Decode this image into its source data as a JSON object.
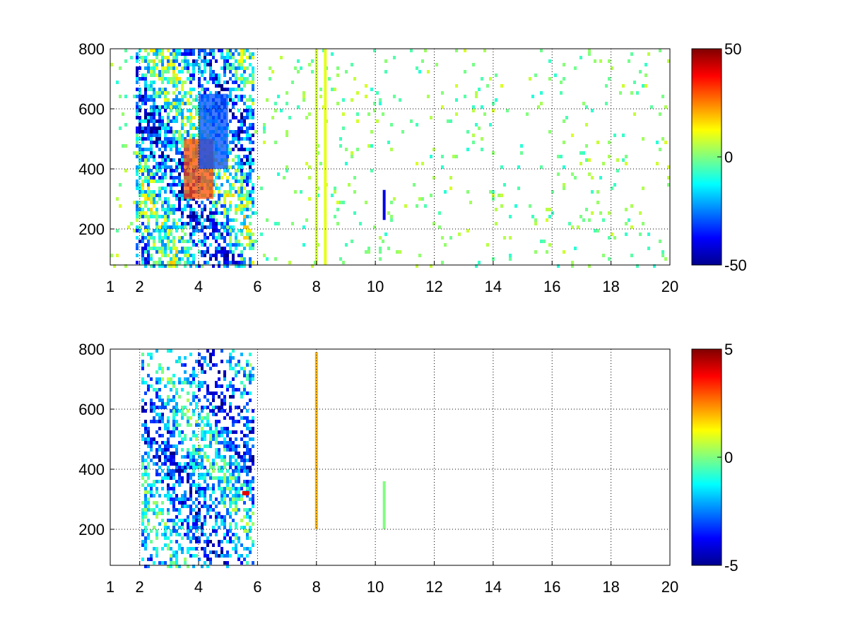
{
  "chart_data": [
    {
      "type": "heatmap",
      "title": "",
      "xlabel": "",
      "ylabel": "",
      "xlim": [
        1,
        20
      ],
      "ylim": [
        80,
        800
      ],
      "xticks": [
        1,
        2,
        4,
        6,
        8,
        10,
        12,
        14,
        16,
        18,
        20
      ],
      "yticks": [
        200,
        400,
        600,
        800
      ],
      "grid": true,
      "colormap": "jet",
      "colorbar": {
        "min": -50,
        "max": 50,
        "ticks": [
          50,
          0,
          -50
        ]
      },
      "features": [
        {
          "description": "dense band",
          "x_range": [
            1.8,
            5.8
          ],
          "value_range": [
            -40,
            35
          ]
        },
        {
          "description": "positive core",
          "x": [
            3.5,
            4.5
          ],
          "y": [
            300,
            500
          ],
          "value": 30
        },
        {
          "description": "negative core",
          "x": [
            4,
            5
          ],
          "y": [
            400,
            650
          ],
          "value": -30
        },
        {
          "description": "column",
          "x": 8.0,
          "value": 8
        },
        {
          "description": "column",
          "x": 8.3,
          "value": 10
        },
        {
          "description": "column",
          "x": 10.3,
          "y": [
            230,
            330
          ],
          "value": -40
        }
      ]
    },
    {
      "type": "heatmap",
      "title": "",
      "xlabel": "",
      "ylabel": "",
      "xlim": [
        1,
        20
      ],
      "ylim": [
        80,
        800
      ],
      "xticks": [
        1,
        2,
        4,
        6,
        8,
        10,
        12,
        14,
        16,
        18,
        20
      ],
      "yticks": [
        200,
        400,
        600,
        800
      ],
      "grid": true,
      "colormap": "jet",
      "colorbar": {
        "min": -5,
        "max": 5,
        "ticks": [
          5,
          0,
          -5
        ]
      },
      "features": [
        {
          "description": "dense band",
          "x_range": [
            2.0,
            5.8
          ],
          "value_range": [
            -4,
            2
          ]
        },
        {
          "description": "column",
          "x": 8.0,
          "y": [
            200,
            790
          ],
          "value": 2
        },
        {
          "description": "column",
          "x": 10.3,
          "y": [
            200,
            360
          ],
          "value": 0
        },
        {
          "description": "point",
          "x": 5.6,
          "y": 320,
          "value": 4
        }
      ]
    }
  ]
}
